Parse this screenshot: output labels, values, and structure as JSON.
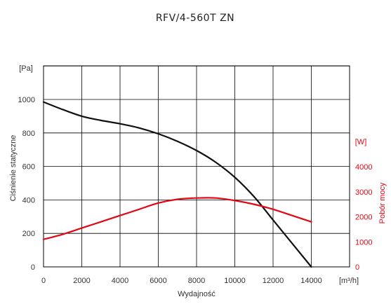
{
  "chart_data": {
    "type": "line",
    "title": "RFV/4-560T ZN",
    "xlabel": "Wydajność",
    "x_unit": "[m³/h]",
    "ylabel_left": "Ciśnienie statyczne",
    "y_unit_left": "[Pa]",
    "ylabel_right": "Pobór mocy",
    "y_unit_right": "[W]",
    "xlim": [
      0,
      16000
    ],
    "ylim_left": [
      0,
      1000
    ],
    "ylim_right": [
      0,
      4000
    ],
    "x_ticks": [
      "0",
      "2000",
      "4000",
      "6000",
      "8000",
      "10000",
      "12000",
      "14000"
    ],
    "y_ticks_left": [
      "0",
      "200",
      "400",
      "600",
      "800",
      "1000"
    ],
    "y_ticks_right": [
      "0",
      "1000",
      "2000",
      "3000",
      "4000"
    ],
    "grid": true,
    "colors": {
      "pressure": "#111111",
      "power": "#e30613",
      "grid": "#000000"
    },
    "series": [
      {
        "axis": "left",
        "color": "#111111",
        "x": [
          0,
          1000,
          2000,
          3000,
          4000,
          5000,
          6000,
          7000,
          8000,
          9000,
          10000,
          11000,
          12000,
          13000,
          14000
        ],
        "values": [
          985,
          940,
          900,
          875,
          855,
          830,
          795,
          750,
          695,
          625,
          535,
          420,
          280,
          140,
          0
        ]
      },
      {
        "axis": "right",
        "color": "#e30613",
        "x": [
          0,
          1000,
          2000,
          3000,
          4000,
          5000,
          6000,
          7000,
          8000,
          9000,
          10000,
          11000,
          12000,
          13000,
          14000
        ],
        "values": [
          1100,
          1300,
          1550,
          1800,
          2050,
          2300,
          2550,
          2700,
          2750,
          2750,
          2650,
          2500,
          2300,
          2050,
          1800
        ]
      }
    ]
  }
}
